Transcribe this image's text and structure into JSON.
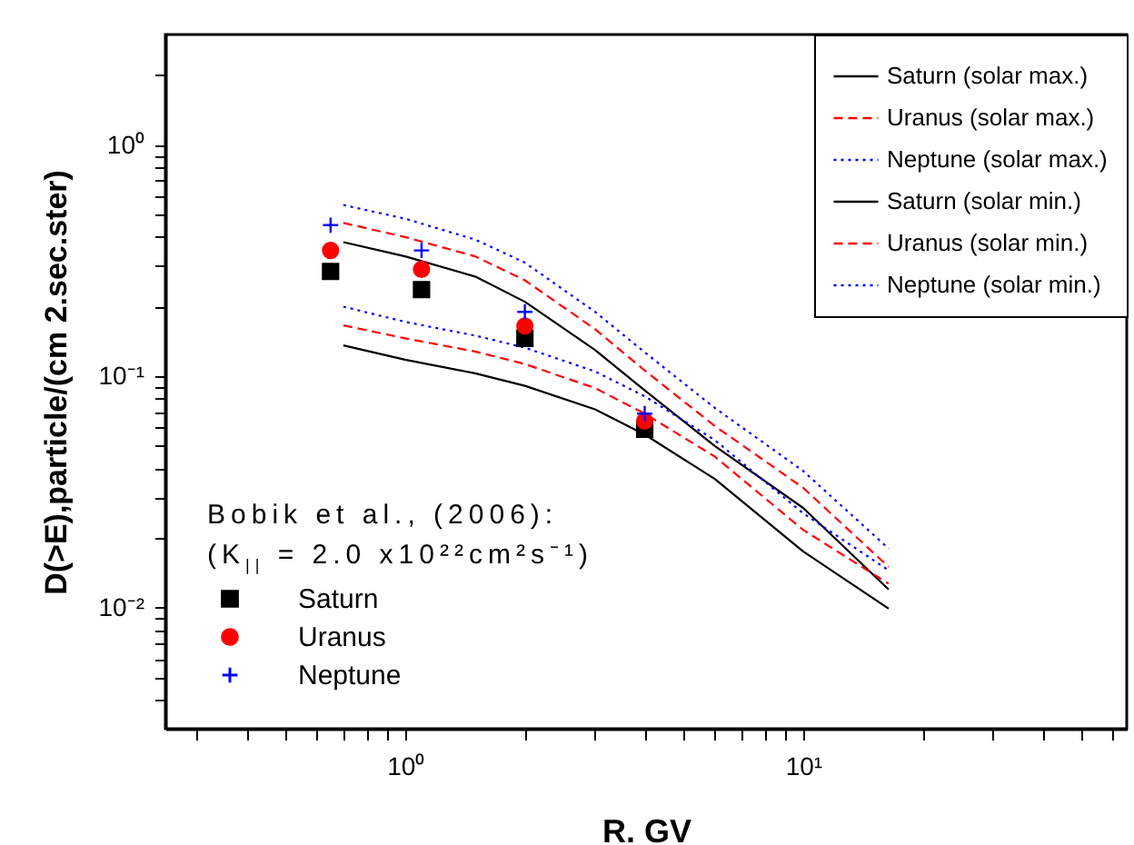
{
  "chart_data": {
    "type": "line",
    "xlabel": "R. GV",
    "ylabel": "D(>E),particle/(cm 2.sec.ster)",
    "log": "xy",
    "grid": false,
    "legend": "top right",
    "xlim": [
      0.25,
      65
    ],
    "ylim": [
      0.003,
      3
    ],
    "xticks": [
      {
        "value": 0.3,
        "label": null
      },
      {
        "value": 0.4,
        "label": null
      },
      {
        "value": 0.5,
        "label": null
      },
      {
        "value": 0.6,
        "label": null
      },
      {
        "value": 0.7,
        "label": null
      },
      {
        "value": 0.8,
        "label": null
      },
      {
        "value": 0.9,
        "label": null
      },
      {
        "value": 1,
        "label": "10⁰"
      },
      {
        "value": 2,
        "label": null
      },
      {
        "value": 3,
        "label": null
      },
      {
        "value": 4,
        "label": null
      },
      {
        "value": 5,
        "label": null
      },
      {
        "value": 6,
        "label": null
      },
      {
        "value": 7,
        "label": null
      },
      {
        "value": 8,
        "label": null
      },
      {
        "value": 9,
        "label": null
      },
      {
        "value": 10,
        "label": "10¹"
      },
      {
        "value": 20,
        "label": null
      },
      {
        "value": 30,
        "label": null
      },
      {
        "value": 40,
        "label": null
      },
      {
        "value": 50,
        "label": null
      },
      {
        "value": 60,
        "label": null
      }
    ],
    "yticks": [
      {
        "value": 0.004,
        "label": null
      },
      {
        "value": 0.005,
        "label": null
      },
      {
        "value": 0.006,
        "label": null
      },
      {
        "value": 0.007,
        "label": null
      },
      {
        "value": 0.008,
        "label": null
      },
      {
        "value": 0.009,
        "label": null
      },
      {
        "value": 0.01,
        "label": "10⁻²"
      },
      {
        "value": 0.02,
        "label": null
      },
      {
        "value": 0.03,
        "label": null
      },
      {
        "value": 0.04,
        "label": null
      },
      {
        "value": 0.05,
        "label": null
      },
      {
        "value": 0.06,
        "label": null
      },
      {
        "value": 0.07,
        "label": null
      },
      {
        "value": 0.08,
        "label": null
      },
      {
        "value": 0.09,
        "label": null
      },
      {
        "value": 0.1,
        "label": "10⁻¹"
      },
      {
        "value": 0.2,
        "label": null
      },
      {
        "value": 0.3,
        "label": null
      },
      {
        "value": 0.4,
        "label": null
      },
      {
        "value": 0.5,
        "label": null
      },
      {
        "value": 0.6,
        "label": null
      },
      {
        "value": 0.7,
        "label": null
      },
      {
        "value": 0.8,
        "label": null
      },
      {
        "value": 0.9,
        "label": null
      },
      {
        "value": 1,
        "label": "10⁰"
      },
      {
        "value": 2,
        "label": null
      }
    ],
    "annotations": [
      "Bobik et al., (2006):",
      "(K$_{||}$ = 2.0 x10²²cm²s⁻¹)"
    ],
    "series": [
      {
        "name": "Saturn (solar max.)",
        "color": "#000000",
        "line_style": "solid",
        "x": [
          0.7,
          1,
          1.5,
          2,
          3,
          4,
          6,
          10,
          16.4
        ],
        "values": [
          0.38,
          0.33,
          0.27,
          0.21,
          0.13,
          0.087,
          0.05,
          0.027,
          0.012
        ]
      },
      {
        "name": "Uranus (solar max.)",
        "color": "#ff0000",
        "line_style": "dashed",
        "x": [
          0.7,
          1,
          1.5,
          2,
          3,
          4,
          6,
          10,
          16.4
        ],
        "values": [
          0.46,
          0.4,
          0.33,
          0.26,
          0.16,
          0.106,
          0.061,
          0.033,
          0.015
        ]
      },
      {
        "name": "Neptune (solar max.)",
        "color": "#0000ff",
        "line_style": "dotted",
        "x": [
          0.7,
          1,
          1.5,
          2,
          3,
          4,
          6,
          10,
          16.4
        ],
        "values": [
          0.55,
          0.48,
          0.39,
          0.31,
          0.19,
          0.127,
          0.073,
          0.039,
          0.018
        ]
      },
      {
        "name": "Saturn (solar min.)",
        "color": "#000000",
        "line_style": "solid",
        "x": [
          0.7,
          1,
          1.5,
          2,
          3,
          4,
          6,
          10,
          16.4
        ],
        "values": [
          0.136,
          0.118,
          0.103,
          0.091,
          0.072,
          0.056,
          0.036,
          0.0175,
          0.0099
        ]
      },
      {
        "name": "Uranus (solar min.)",
        "color": "#ff0000",
        "line_style": "dashed",
        "x": [
          0.7,
          1,
          1.5,
          2,
          3,
          4,
          6,
          10,
          16.4
        ],
        "values": [
          0.166,
          0.146,
          0.128,
          0.113,
          0.089,
          0.069,
          0.045,
          0.0217,
          0.0127
        ]
      },
      {
        "name": "Neptune (solar min.)",
        "color": "#0000ff",
        "line_style": "dotted",
        "x": [
          0.7,
          1,
          1.5,
          2,
          3,
          4,
          6,
          10,
          16.4
        ],
        "values": [
          0.2,
          0.172,
          0.15,
          0.133,
          0.105,
          0.082,
          0.053,
          0.0256,
          0.0145
        ]
      },
      {
        "name": "Saturn",
        "type": "scatter",
        "color": "#000000",
        "marker": "square",
        "x": [
          0.65,
          1.1,
          2,
          4
        ],
        "values": [
          0.284,
          0.237,
          0.146,
          0.059
        ]
      },
      {
        "name": "Uranus",
        "type": "scatter",
        "color": "#ff0000",
        "marker": "circle",
        "x": [
          0.65,
          1.1,
          2,
          4
        ],
        "values": [
          0.35,
          0.29,
          0.165,
          0.064
        ]
      },
      {
        "name": "Neptune",
        "type": "scatter",
        "color": "#0000ff",
        "marker": "cross",
        "x": [
          0.65,
          1.1,
          2,
          4
        ],
        "values": [
          0.45,
          0.35,
          0.19,
          0.069
        ]
      }
    ]
  }
}
